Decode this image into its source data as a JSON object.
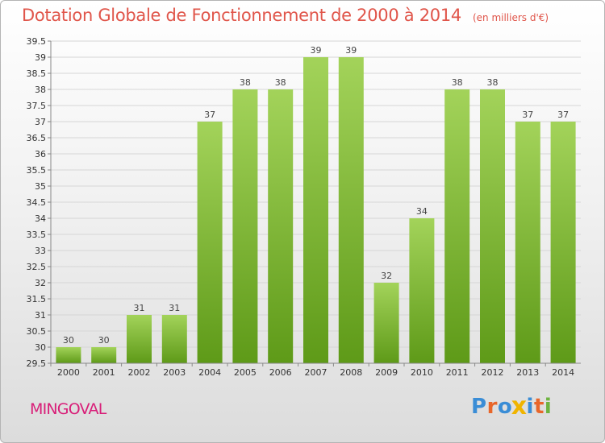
{
  "title": "Dotation Globale de Fonctionnement de 2000 à 2014",
  "unit": "(en milliers d'€)",
  "commune": "MINGOVAL",
  "logo": {
    "letters": [
      "P",
      "r",
      "o",
      "x",
      "i",
      "t",
      "i"
    ],
    "colors": [
      "#3a8dd6",
      "#e8662a",
      "#3a8dd6",
      "#f0b400",
      "#3a8dd6",
      "#e8662a",
      "#6db33f"
    ]
  },
  "chart_data": {
    "type": "bar",
    "categories": [
      "2000",
      "2001",
      "2002",
      "2003",
      "2004",
      "2005",
      "2006",
      "2007",
      "2008",
      "2009",
      "2010",
      "2011",
      "2012",
      "2013",
      "2014"
    ],
    "values": [
      30,
      30,
      31,
      31,
      37,
      38,
      38,
      39,
      39,
      32,
      34,
      38,
      38,
      37,
      37
    ],
    "ylim": [
      29.5,
      39.5
    ],
    "yticks": [
      "29.5",
      "30",
      "30.5",
      "31",
      "31.5",
      "32",
      "32.5",
      "33",
      "33.5",
      "34",
      "34.5",
      "35",
      "35.5",
      "36",
      "36.5",
      "37",
      "37.5",
      "38",
      "38.5",
      "39",
      "39.5"
    ],
    "grid": true,
    "bar_color_top": "#a3d35a",
    "bar_color_bottom": "#5e9a18"
  }
}
